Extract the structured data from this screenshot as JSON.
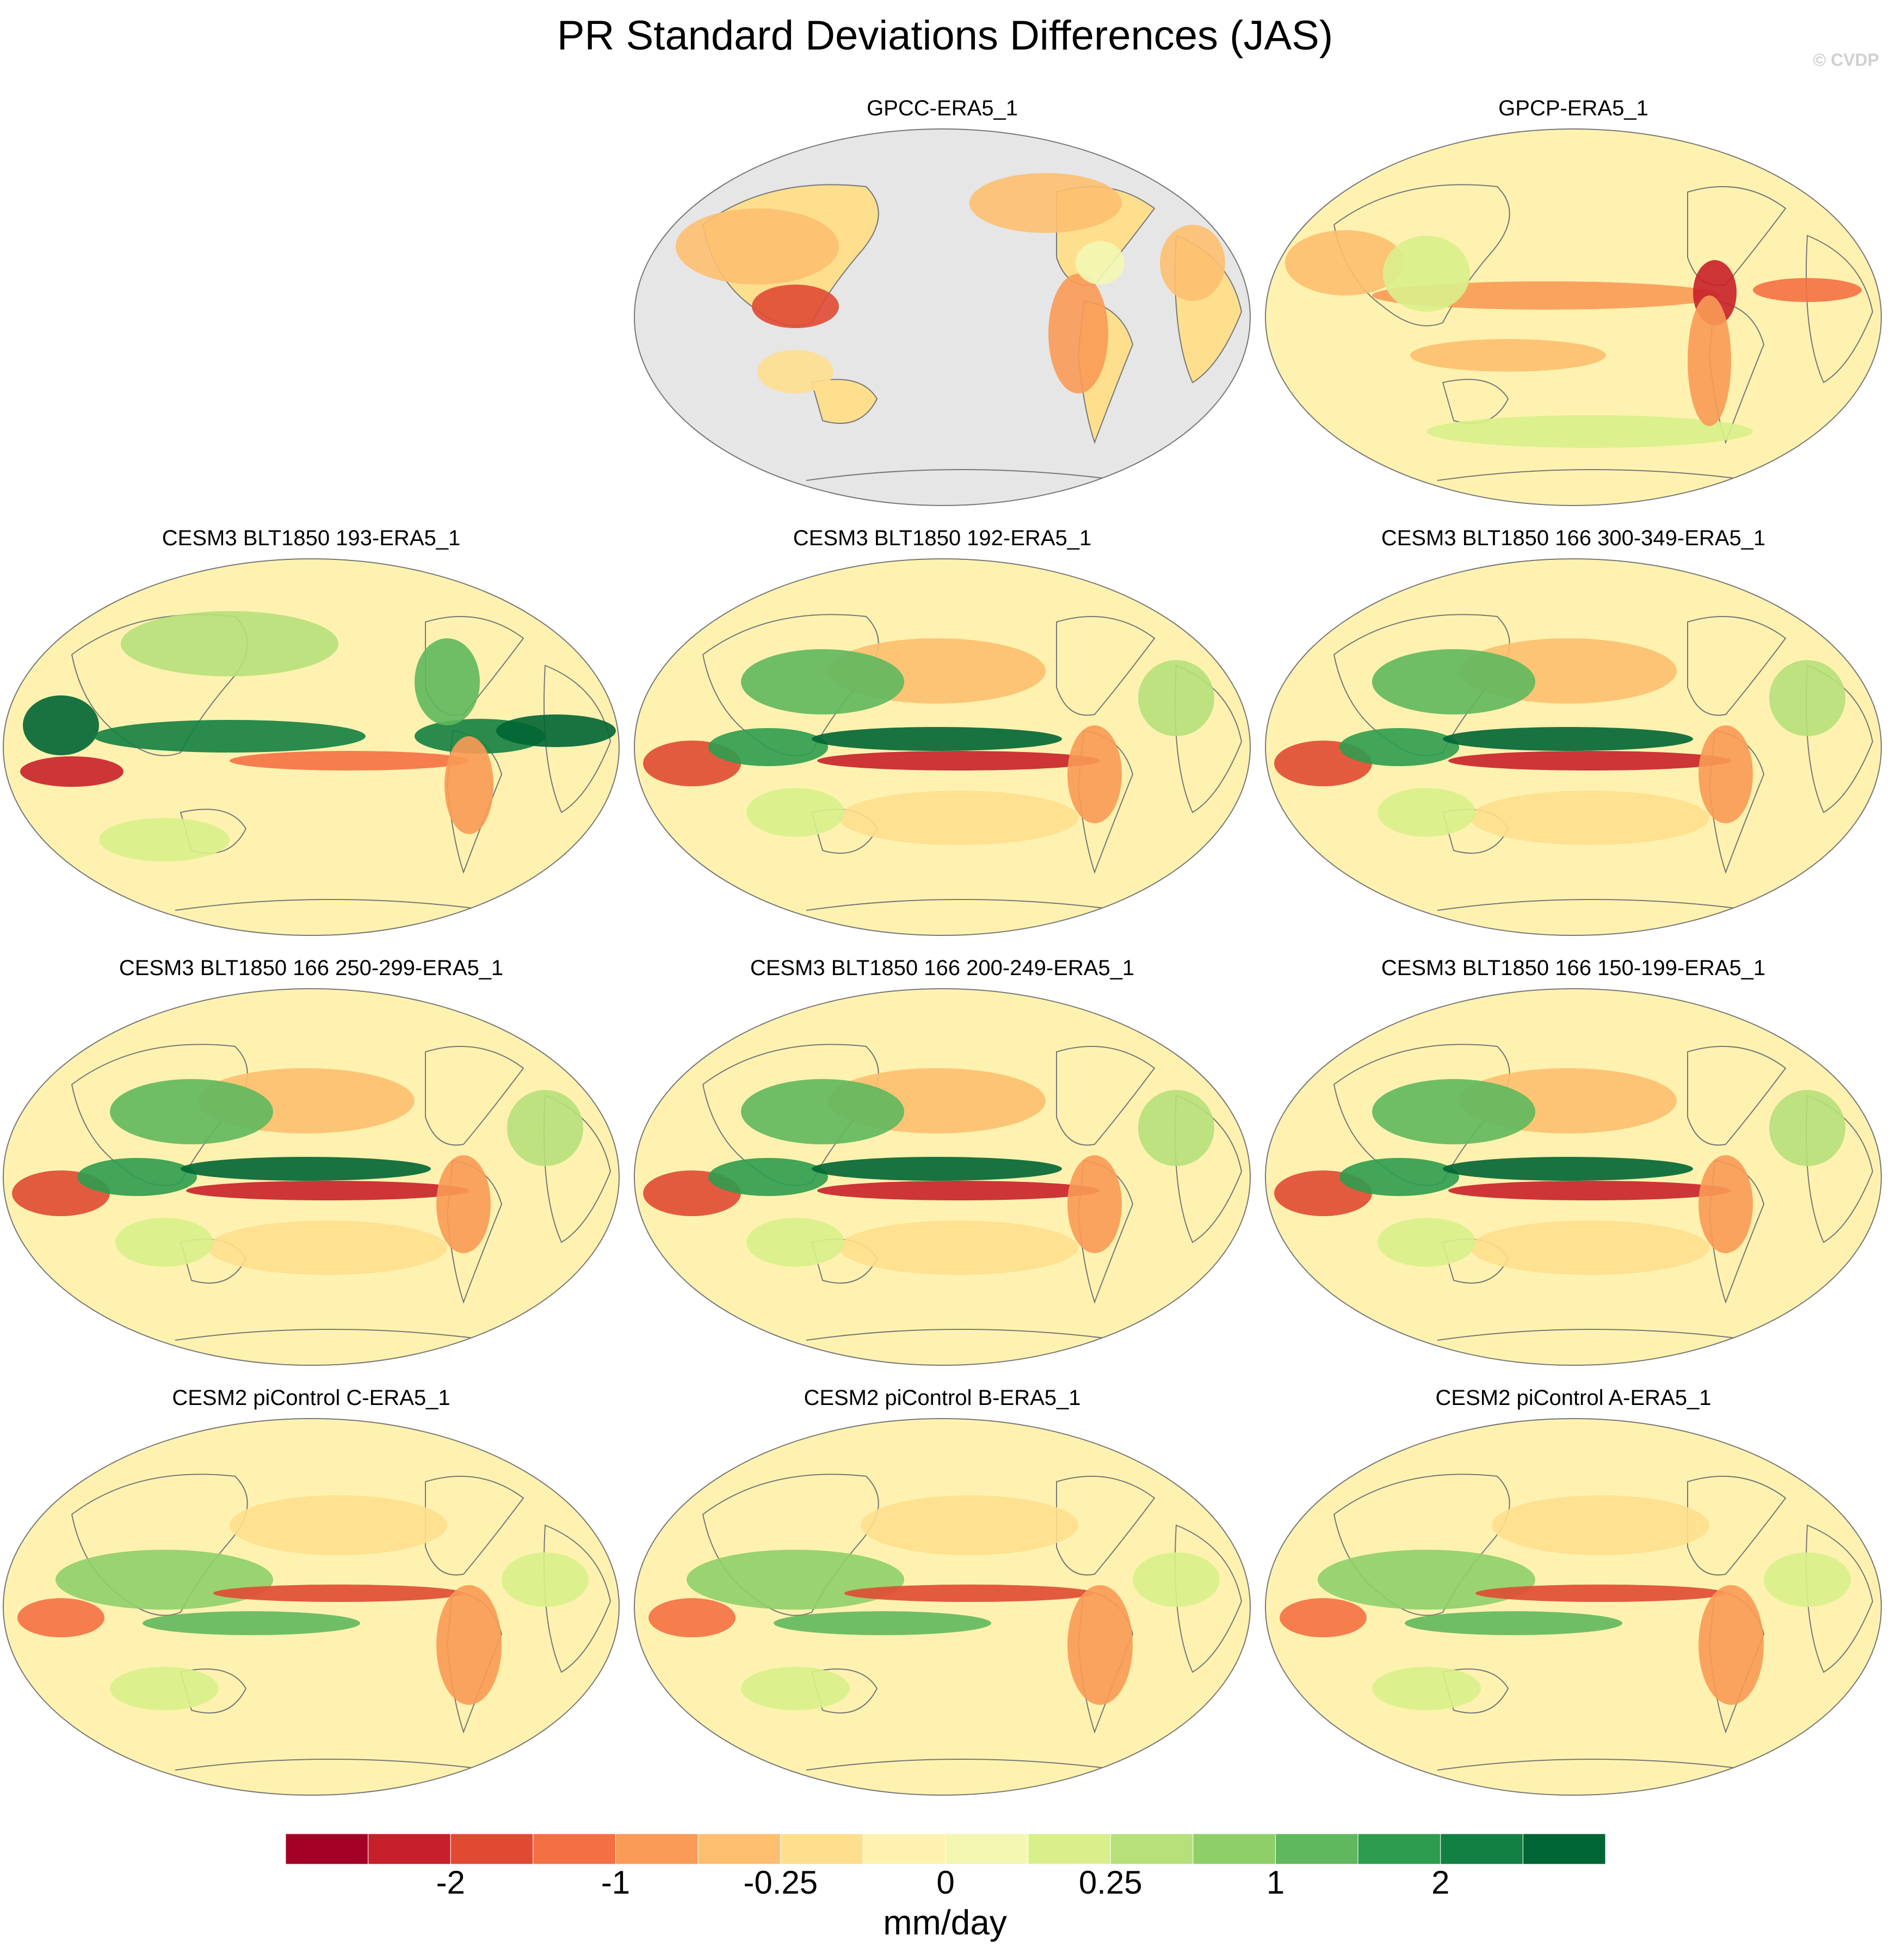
{
  "title": "PR Standard Deviations Differences (JAS)",
  "watermark": "© CVDP",
  "units": "mm/day",
  "colorbar": {
    "colors": [
      "#a50026",
      "#c8202a",
      "#e04a33",
      "#f47044",
      "#fa9a57",
      "#fdbf6f",
      "#fedf8e",
      "#fff2b0",
      "#f3f7b2",
      "#d9ef8b",
      "#b6e07a",
      "#8fcf6a",
      "#5fb85e",
      "#2e9c4e",
      "#138043",
      "#006534"
    ],
    "tick_labels": [
      "-2",
      "-1",
      "-0.25",
      "0",
      "0.25",
      "1",
      "2"
    ]
  },
  "panels": [
    {
      "title": "GPCC-ERA5_1",
      "pattern": "land-only"
    },
    {
      "title": "GPCP-ERA5_1",
      "pattern": "obs"
    },
    {
      "title": "CESM3 BLT1850 193-ERA5_1",
      "pattern": "strong"
    },
    {
      "title": "CESM3 BLT1850 192-ERA5_1",
      "pattern": "model"
    },
    {
      "title": "CESM3 BLT1850 166 300-349-ERA5_1",
      "pattern": "model"
    },
    {
      "title": "CESM3 BLT1850 166 250-299-ERA5_1",
      "pattern": "model"
    },
    {
      "title": "CESM3 BLT1850 166 200-249-ERA5_1",
      "pattern": "model"
    },
    {
      "title": "CESM3 BLT1850 166 150-199-ERA5_1",
      "pattern": "model"
    },
    {
      "title": "CESM2 piControl C-ERA5_1",
      "pattern": "picontrol"
    },
    {
      "title": "CESM2 piControl B-ERA5_1",
      "pattern": "picontrol"
    },
    {
      "title": "CESM2 piControl A-ERA5_1",
      "pattern": "picontrol"
    }
  ]
}
